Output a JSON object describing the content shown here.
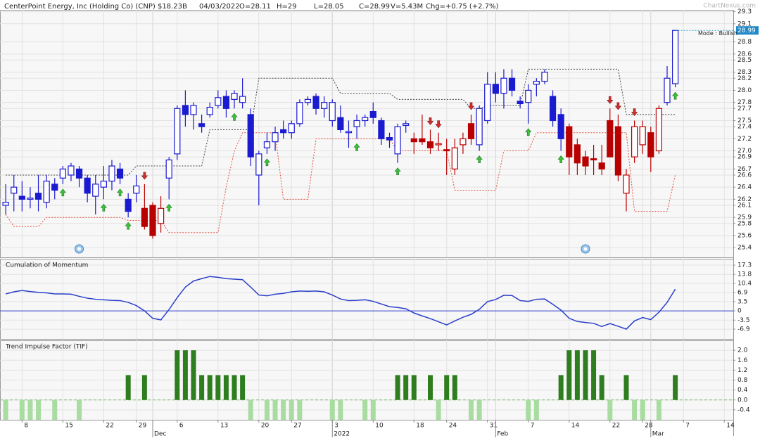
{
  "header": {
    "title": "CenterPoint Energy, Inc (Holding Co) (CNP) $18.23B",
    "date": "04/03/2022",
    "open": "O=28.11",
    "high": "H=29",
    "low": "L=28.05",
    "close": "C=28.99",
    "volume": "V=5.43M",
    "change": "Chg=+0.75 (+2.7%)",
    "watermark": "ChartNexus.com"
  },
  "chart_data": [
    {
      "type": "candlestick",
      "open": [
        26.1,
        26.3,
        26.25,
        26.2,
        26.3,
        26.15,
        26.45,
        26.55,
        26.6,
        26.7,
        26.55,
        26.25,
        26.4,
        26.5,
        26.7,
        26.2,
        26.3,
        26.05,
        26.1,
        25.8,
        26.55,
        26.95,
        27.75,
        27.6,
        27.45,
        27.6,
        27.75,
        27.9,
        27.85,
        27.8,
        27.6,
        26.6,
        27.05,
        27.15,
        27.35,
        27.3,
        27.45,
        27.8,
        27.9,
        27.7,
        27.5,
        27.55,
        27.3,
        27.4,
        27.5,
        27.65,
        27.5,
        27.22,
        26.95,
        27.42,
        27.2,
        27.2,
        27.15,
        27.1,
        27.02,
        26.7,
        27.1,
        27.45,
        27.1,
        27.5,
        28.1,
        27.95,
        28.2,
        27.82,
        27.8,
        28.1,
        28.15,
        27.9,
        27.6,
        27.4,
        27.1,
        26.9,
        26.87,
        26.8,
        27.5,
        27.4,
        26.3,
        26.9,
        27.1,
        27.3,
        27.0,
        27.8,
        28.11
      ],
      "high": [
        26.45,
        26.6,
        26.5,
        26.4,
        26.6,
        26.6,
        26.55,
        26.75,
        26.8,
        26.75,
        26.6,
        26.6,
        26.75,
        26.85,
        26.8,
        26.3,
        26.6,
        26.45,
        26.15,
        26.25,
        26.9,
        27.75,
        28.0,
        27.8,
        27.6,
        27.8,
        28.0,
        28.0,
        28.0,
        28.2,
        27.7,
        27.0,
        27.3,
        27.4,
        27.5,
        27.5,
        27.85,
        27.9,
        27.95,
        27.9,
        27.85,
        27.75,
        27.5,
        27.6,
        27.6,
        27.8,
        27.55,
        27.3,
        27.45,
        27.5,
        27.3,
        27.6,
        27.35,
        27.3,
        27.2,
        27.2,
        27.3,
        27.6,
        27.75,
        28.3,
        28.3,
        28.35,
        28.35,
        27.9,
        28.1,
        28.2,
        28.35,
        28.0,
        27.7,
        27.45,
        27.2,
        27.0,
        27.1,
        27.1,
        27.7,
        27.6,
        26.7,
        27.5,
        27.5,
        27.4,
        27.75,
        28.4,
        29.0
      ],
      "low": [
        25.95,
        26.0,
        26.0,
        26.05,
        26.0,
        26.05,
        26.2,
        26.45,
        26.5,
        26.4,
        26.15,
        25.95,
        26.2,
        26.35,
        26.45,
        25.9,
        26.15,
        25.7,
        25.55,
        25.65,
        26.2,
        26.85,
        27.4,
        27.35,
        27.3,
        27.55,
        27.7,
        27.55,
        27.7,
        27.7,
        26.75,
        26.1,
        26.95,
        27.0,
        27.2,
        27.2,
        27.4,
        27.75,
        27.6,
        27.55,
        27.4,
        27.3,
        27.05,
        27.2,
        27.4,
        27.45,
        27.1,
        27.05,
        26.8,
        27.3,
        26.95,
        27.1,
        26.95,
        27.0,
        26.6,
        26.6,
        26.95,
        27.1,
        27.0,
        27.45,
        27.8,
        27.7,
        27.9,
        27.7,
        27.45,
        27.9,
        28.1,
        27.4,
        27.0,
        26.6,
        26.6,
        26.6,
        26.6,
        26.6,
        26.9,
        26.5,
        26.0,
        26.8,
        26.95,
        26.65,
        26.95,
        27.75,
        28.05
      ],
      "close": [
        26.15,
        26.4,
        26.2,
        26.22,
        26.2,
        26.5,
        26.35,
        26.7,
        26.75,
        26.55,
        26.3,
        26.45,
        26.5,
        26.75,
        26.55,
        26.0,
        26.42,
        25.75,
        25.6,
        26.05,
        26.85,
        27.7,
        27.6,
        27.75,
        27.4,
        27.72,
        27.88,
        27.7,
        27.95,
        27.9,
        26.9,
        26.95,
        27.15,
        27.3,
        27.3,
        27.45,
        27.8,
        27.85,
        27.7,
        27.8,
        27.8,
        27.35,
        27.32,
        27.5,
        27.55,
        27.55,
        27.2,
        27.18,
        27.4,
        27.45,
        27.15,
        27.15,
        27.05,
        27.12,
        27.0,
        27.05,
        27.2,
        27.2,
        27.7,
        28.1,
        27.95,
        28.2,
        28.0,
        27.78,
        28.0,
        28.15,
        28.3,
        27.5,
        27.2,
        26.9,
        26.8,
        26.75,
        26.85,
        26.7,
        26.9,
        26.6,
        26.6,
        27.4,
        27.4,
        26.9,
        27.7,
        28.2,
        28.99
      ],
      "colors": [
        "#1a1ad0",
        "#1a1ad0",
        "#1a1ad0",
        "#1a1ad0",
        "#1a1ad0",
        "#1a1ad0",
        "#1a1ad0",
        "#1a1ad0",
        "#1a1ad0",
        "#1a1ad0",
        "#1a1ad0",
        "#1a1ad0",
        "#1a1ad0",
        "#1a1ad0",
        "#1a1ad0",
        "#1a1ad0",
        "#1a1ad0",
        "#b80000",
        "#b80000",
        "#b80000",
        "#1a1ad0",
        "#1a1ad0",
        "#1a1ad0",
        "#1a1ad0",
        "#1a1ad0",
        "#1a1ad0",
        "#1a1ad0",
        "#1a1ad0",
        "#1a1ad0",
        "#1a1ad0",
        "#1a1ad0",
        "#1a1ad0",
        "#1a1ad0",
        "#1a1ad0",
        "#1a1ad0",
        "#1a1ad0",
        "#1a1ad0",
        "#1a1ad0",
        "#1a1ad0",
        "#1a1ad0",
        "#1a1ad0",
        "#1a1ad0",
        "#1a1ad0",
        "#1a1ad0",
        "#1a1ad0",
        "#1a1ad0",
        "#1a1ad0",
        "#1a1ad0",
        "#1a1ad0",
        "#1a1ad0",
        "#b80000",
        "#b80000",
        "#b80000",
        "#b80000",
        "#b80000",
        "#b80000",
        "#b80000",
        "#b80000",
        "#1a1ad0",
        "#1a1ad0",
        "#1a1ad0",
        "#1a1ad0",
        "#1a1ad0",
        "#1a1ad0",
        "#1a1ad0",
        "#1a1ad0",
        "#1a1ad0",
        "#1a1ad0",
        "#1a1ad0",
        "#b80000",
        "#b80000",
        "#b80000",
        "#b80000",
        "#b80000",
        "#b80000",
        "#b80000",
        "#b80000",
        "#b80000",
        "#b80000",
        "#b80000",
        "#b80000",
        "#1a1ad0",
        "#1a1ad0"
      ],
      "upper_stop": {
        "color": "#444444",
        "values": [
          26.6,
          26.6,
          26.6,
          26.6,
          26.6,
          26.6,
          26.6,
          26.6,
          26.6,
          26.6,
          26.6,
          26.6,
          26.6,
          26.6,
          26.6,
          26.6,
          26.75,
          26.75,
          26.75,
          26.75,
          26.75,
          26.75,
          26.75,
          26.75,
          26.75,
          27.35,
          27.35,
          27.35,
          27.35,
          27.35,
          27.35,
          28.2,
          28.2,
          28.2,
          28.2,
          28.2,
          28.2,
          28.2,
          28.2,
          28.2,
          28.2,
          27.95,
          27.95,
          27.95,
          27.95,
          27.95,
          27.95,
          27.95,
          27.85,
          27.85,
          27.85,
          27.85,
          27.85,
          27.85,
          27.85,
          27.85,
          27.85,
          27.7,
          27.7,
          27.75,
          27.75,
          27.75,
          27.75,
          27.75,
          28.35,
          28.35,
          28.35,
          28.35,
          28.35,
          28.35,
          28.35,
          28.35,
          28.35,
          28.35,
          28.35,
          28.35,
          27.6,
          27.6,
          27.6,
          27.6,
          27.6,
          27.6,
          27.6
        ]
      },
      "lower_stop": {
        "color": "#e05040",
        "values": [
          25.95,
          25.75,
          25.75,
          25.75,
          25.75,
          25.9,
          25.9,
          25.9,
          25.9,
          25.9,
          25.9,
          25.9,
          25.9,
          25.9,
          25.9,
          25.85,
          25.85,
          25.85,
          25.85,
          25.85,
          25.65,
          25.65,
          25.65,
          25.65,
          25.65,
          25.65,
          25.65,
          26.4,
          27.0,
          27.3,
          27.3,
          27.3,
          27.3,
          27.3,
          26.2,
          26.2,
          26.2,
          26.2,
          27.2,
          27.2,
          27.2,
          27.2,
          27.2,
          27.2,
          27.2,
          27.2,
          27.2,
          27.2,
          27.0,
          27.0,
          27.0,
          27.0,
          27.0,
          27.0,
          27.0,
          26.35,
          26.35,
          26.35,
          26.35,
          26.35,
          26.35,
          27.0,
          27.0,
          27.0,
          27.0,
          27.3,
          27.3,
          27.3,
          27.3,
          27.3,
          27.3,
          27.3,
          27.3,
          27.3,
          27.3,
          27.3,
          27.3,
          26.0,
          26.0,
          26.0,
          26.0,
          26.0,
          26.6
        ]
      },
      "buy_signals": [
        7,
        12,
        14,
        15,
        20,
        28,
        32,
        43,
        48,
        58,
        64,
        68,
        82
      ],
      "sell_signals": [
        17,
        52,
        53,
        57,
        74,
        75,
        77
      ],
      "alerts": [
        9,
        71
      ],
      "annotation": "Mode : Bullish",
      "ylim": [
        25.24,
        29.33
      ],
      "yticks": [
        29.3,
        29.1,
        28.8,
        28.6,
        28.5,
        28.3,
        28.2,
        {
          "value": 28,
          "label": "28.0"
        },
        27.8,
        27.7,
        27.5,
        27.4,
        27.2,
        {
          "value": 27,
          "label": "27.0"
        },
        26.9,
        26.7,
        26.6,
        26.4,
        26.2,
        26.1,
        25.9,
        25.8,
        25.6,
        25.4
      ],
      "xlim": [
        -0.7,
        89.1
      ],
      "xticks": [
        {
          "value": 2,
          "label": "8"
        },
        {
          "value": 7,
          "label": "15"
        },
        {
          "value": 12,
          "label": "22"
        },
        {
          "value": 16,
          "label": "29"
        },
        {
          "value": 21,
          "label": "6"
        },
        {
          "value": 26,
          "label": "13"
        },
        {
          "value": 31,
          "label": "20"
        },
        {
          "value": 35,
          "label": "27"
        },
        {
          "value": 40,
          "label": "3"
        },
        {
          "value": 45,
          "label": "10"
        },
        {
          "value": 50,
          "label": "18"
        },
        {
          "value": 54,
          "label": "24"
        },
        {
          "value": 59,
          "label": "31"
        },
        {
          "value": 64,
          "label": "7"
        },
        {
          "value": 69,
          "label": "14"
        },
        {
          "value": 74,
          "label": "22"
        },
        {
          "value": 78,
          "label": "28"
        },
        {
          "value": 83,
          "label": "7"
        },
        {
          "value": 88,
          "label": "14"
        }
      ],
      "xmonths": [
        {
          "value": 18,
          "label": "Dec"
        },
        {
          "value": 40,
          "label": "2022"
        },
        {
          "value": 60,
          "label": "Feb"
        },
        {
          "value": 79,
          "label": "Mar"
        }
      ],
      "grid": true
    },
    {
      "type": "line",
      "title": "Cumulation of Momentum",
      "color": "#2a3fc9",
      "values": [
        6.4,
        7.2,
        7.7,
        7.3,
        7.0,
        6.8,
        6.4,
        6.4,
        6.3,
        5.5,
        4.8,
        4.4,
        4.2,
        4.0,
        3.9,
        3.2,
        2.0,
        0.0,
        -2.8,
        -3.4,
        0.5,
        5.0,
        9.0,
        11.3,
        12.2,
        13.0,
        12.7,
        12.2,
        12.0,
        11.8,
        9.0,
        6.0,
        5.7,
        6.3,
        6.6,
        7.2,
        7.5,
        7.4,
        7.5,
        7.2,
        6.0,
        4.5,
        3.9,
        4.0,
        4.2,
        3.6,
        2.6,
        1.6,
        1.3,
        0.8,
        -0.8,
        -1.9,
        -2.9,
        -4.1,
        -5.3,
        -3.8,
        -2.4,
        -1.3,
        0.6,
        3.5,
        4.3,
        5.9,
        5.8,
        3.9,
        3.6,
        4.4,
        4.5,
        2.5,
        0.3,
        -2.8,
        -4.0,
        -4.4,
        -4.7,
        -5.9,
        -4.8,
        -5.8,
        -6.9,
        -3.8,
        -2.5,
        -3.3,
        -0.5,
        3.2,
        8.2
      ],
      "ylim": [
        -10.6,
        19.7
      ],
      "yticks": [
        17.3,
        13.8,
        10.4,
        6.9,
        3.5,
        0,
        -3.5,
        -6.9
      ],
      "zero_line": true,
      "grid": true
    },
    {
      "type": "bar",
      "title": "Trend Impulse Factor (TIF)",
      "color": "#2e7d1e",
      "negative_color": "#a8dca0",
      "values": [
        -0.8,
        0,
        -0.8,
        -0.8,
        -0.8,
        0,
        -0.8,
        0,
        0,
        -0.8,
        0,
        0,
        0,
        0,
        0,
        1,
        0,
        1,
        0,
        0,
        0,
        2,
        2,
        2,
        1,
        1,
        1,
        1,
        1,
        1,
        -0.8,
        0,
        -0.8,
        -0.8,
        -0.8,
        -0.8,
        -0.8,
        0,
        0,
        0,
        -0.8,
        -0.8,
        0,
        0,
        -0.8,
        -0.8,
        0,
        0,
        1,
        1,
        1,
        0,
        1,
        -0.8,
        1,
        1,
        0,
        -0.8,
        -0.8,
        0,
        0,
        0,
        0,
        0,
        -0.8,
        -0.8,
        0,
        0,
        1,
        2,
        2,
        2,
        2,
        1,
        -0.8,
        0,
        1,
        -0.8,
        -0.8,
        0,
        -0.8,
        0,
        1
      ],
      "ylim": [
        -0.8,
        2.4
      ],
      "yticks": [
        {
          "value": 2,
          "label": "2.0"
        },
        1.6,
        1.2,
        0.8,
        0.4,
        {
          "value": 0,
          "label": "0.0"
        },
        -0.4
      ],
      "zero_line": true,
      "grid": true
    }
  ]
}
